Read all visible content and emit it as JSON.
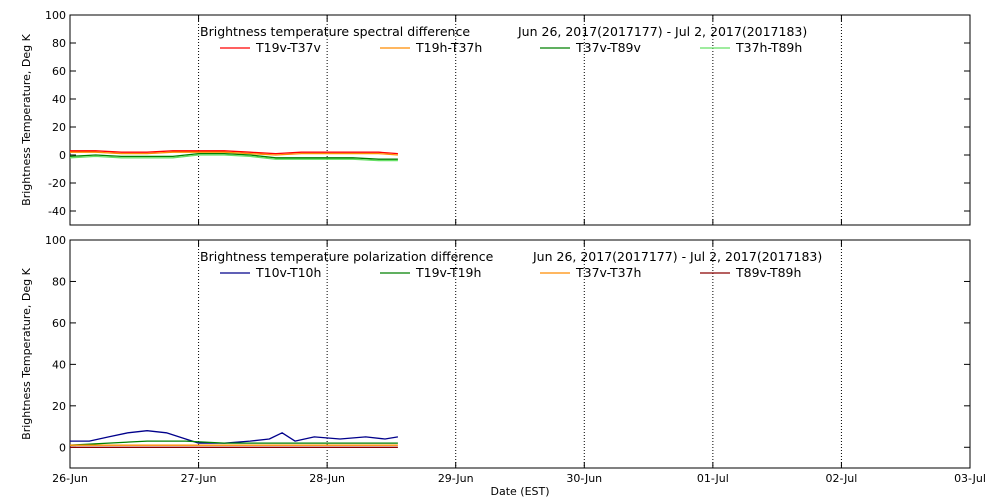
{
  "chart_data": [
    {
      "type": "line",
      "title": "Brightness temperature spectral difference",
      "date_range": "Jun 26, 2017(2017177) - Jul  2, 2017(2017183)",
      "ylabel": "Brightness Temperature, Deg K",
      "xlabel": "",
      "ylim": [
        -50,
        100
      ],
      "yticks": [
        -40,
        -20,
        0,
        20,
        40,
        60,
        80,
        100
      ],
      "xlim": [
        0,
        7
      ],
      "xticks": [
        0,
        1,
        2,
        3,
        4,
        5,
        6,
        7
      ],
      "xtick_labels": [],
      "grid": "vertical dotted lines at each day",
      "legend_position": "top",
      "series": [
        {
          "name": "T19v-T37v",
          "color": "#ff0000",
          "x": [
            0,
            0.2,
            0.4,
            0.6,
            0.8,
            1.0,
            1.2,
            1.4,
            1.6,
            1.8,
            2.0,
            2.2,
            2.4,
            2.55
          ],
          "y": [
            3,
            3,
            2,
            2,
            3,
            3,
            3,
            2,
            1,
            2,
            2,
            2,
            2,
            1
          ]
        },
        {
          "name": "T19h-T37h",
          "color": "#ff8c00",
          "x": [
            0,
            0.2,
            0.4,
            0.6,
            0.8,
            1.0,
            1.2,
            1.4,
            1.6,
            1.8,
            2.0,
            2.2,
            2.4,
            2.55
          ],
          "y": [
            2,
            2,
            1,
            1,
            2,
            2,
            2,
            1,
            0,
            1,
            1,
            1,
            1,
            0
          ]
        },
        {
          "name": "T37v-T89v",
          "color": "#008000",
          "x": [
            0,
            0.2,
            0.4,
            0.6,
            0.8,
            1.0,
            1.2,
            1.4,
            1.6,
            1.8,
            2.0,
            2.2,
            2.4,
            2.55
          ],
          "y": [
            -1,
            0,
            -1,
            -1,
            -1,
            1,
            1,
            0,
            -2,
            -2,
            -2,
            -2,
            -3,
            -3
          ]
        },
        {
          "name": "T37h-T89h",
          "color": "#66e066",
          "x": [
            0,
            0.2,
            0.4,
            0.6,
            0.8,
            1.0,
            1.2,
            1.4,
            1.6,
            1.8,
            2.0,
            2.2,
            2.4,
            2.55
          ],
          "y": [
            -2,
            -1,
            -2,
            -2,
            -2,
            0,
            0,
            -1,
            -3,
            -3,
            -3,
            -3,
            -4,
            -4
          ]
        }
      ]
    },
    {
      "type": "line",
      "title": "Brightness temperature polarization difference",
      "date_range": "Jun 26, 2017(2017177) - Jul  2, 2017(2017183)",
      "ylabel": "Brightness Temperature, Deg K",
      "xlabel": "Date (EST)",
      "ylim": [
        -10,
        100
      ],
      "yticks": [
        0,
        20,
        40,
        60,
        80,
        100
      ],
      "xlim": [
        0,
        7
      ],
      "xticks": [
        0,
        1,
        2,
        3,
        4,
        5,
        6,
        7
      ],
      "xtick_labels": [
        "26-Jun",
        "27-Jun",
        "28-Jun",
        "29-Jun",
        "30-Jun",
        "01-Jul",
        "02-Jul",
        "03-Jul"
      ],
      "grid": "vertical dotted lines at each day",
      "legend_position": "top",
      "series": [
        {
          "name": "T10v-T10h",
          "color": "#00008b",
          "x": [
            0,
            0.15,
            0.3,
            0.45,
            0.6,
            0.75,
            0.9,
            1.0,
            1.2,
            1.4,
            1.55,
            1.65,
            1.75,
            1.9,
            2.1,
            2.3,
            2.45,
            2.55
          ],
          "y": [
            3,
            3,
            5,
            7,
            8,
            7,
            4,
            2,
            2,
            3,
            4,
            7,
            3,
            5,
            4,
            5,
            4,
            5
          ]
        },
        {
          "name": "T19v-T19h",
          "color": "#008000",
          "x": [
            0,
            0.3,
            0.6,
            0.9,
            1.2,
            1.5,
            1.8,
            2.1,
            2.4,
            2.55
          ],
          "y": [
            1,
            2,
            3,
            3,
            2,
            2,
            2,
            2,
            2,
            2
          ]
        },
        {
          "name": "T37v-T37h",
          "color": "#ff8c00",
          "x": [
            0,
            0.3,
            0.6,
            0.9,
            1.2,
            1.5,
            1.8,
            2.1,
            2.4,
            2.55
          ],
          "y": [
            1,
            1,
            1,
            1,
            1,
            1,
            1,
            1,
            1,
            1
          ]
        },
        {
          "name": "T89v-T89h",
          "color": "#8b0000",
          "x": [
            0,
            0.3,
            0.6,
            0.9,
            1.2,
            1.5,
            1.8,
            2.1,
            2.4,
            2.55
          ],
          "y": [
            0,
            0,
            0,
            0,
            0,
            0,
            0,
            0,
            0,
            0
          ]
        }
      ]
    }
  ]
}
